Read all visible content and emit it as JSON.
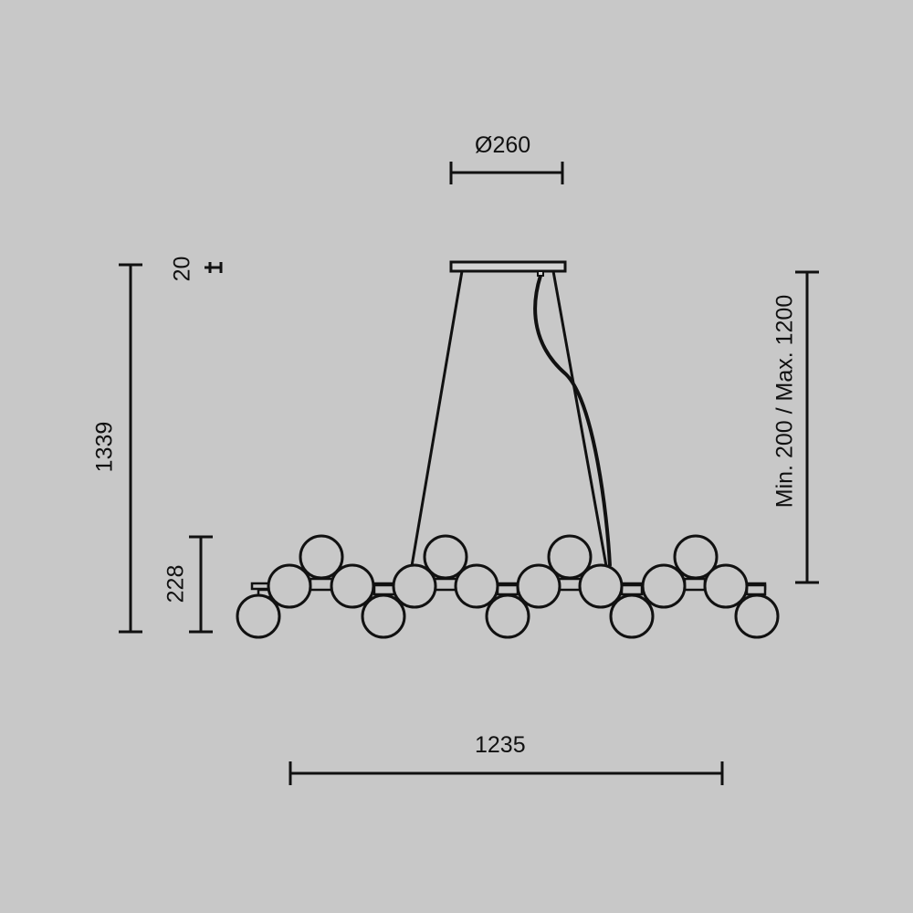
{
  "dimensions": {
    "canopy_diameter": "Ø260",
    "canopy_height": "20",
    "total_height": "1339",
    "body_height": "228",
    "suspension_range": "Min. 200 / Max. 1200",
    "width": "1235"
  },
  "colors": {
    "background": "#c8c8c8",
    "line": "#111111"
  }
}
